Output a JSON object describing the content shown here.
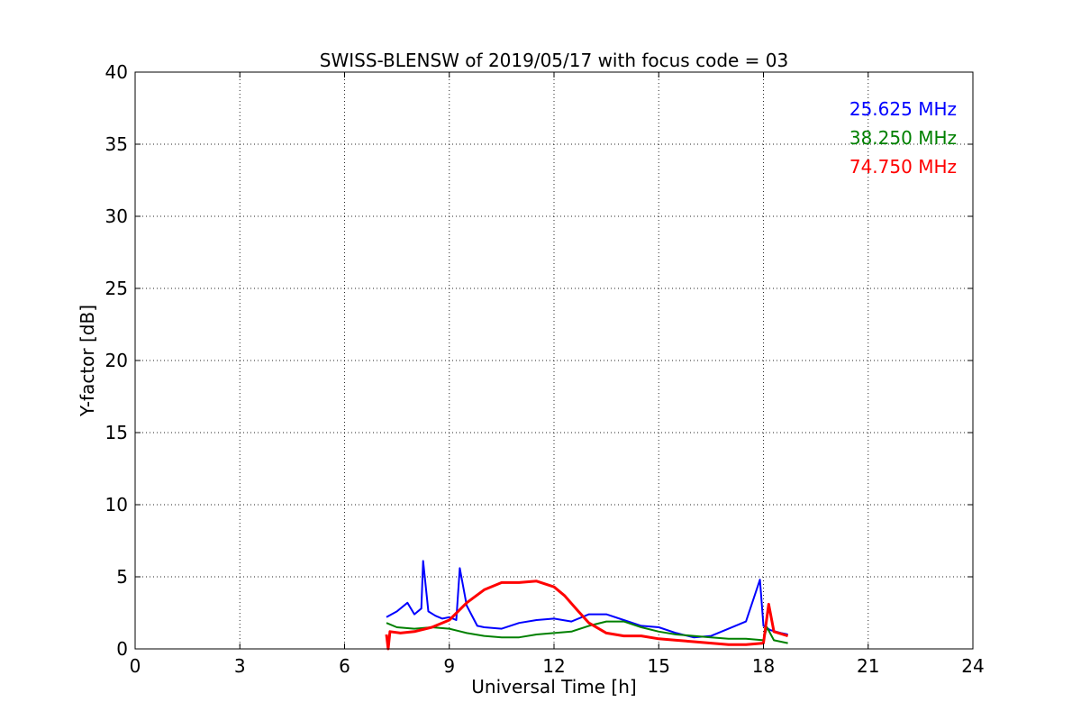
{
  "chart_data": {
    "type": "line",
    "title": "SWISS-BLENSW of 2019/05/17 with focus code = 03",
    "xlabel": "Universal Time [h]",
    "ylabel": "Y-factor [dB]",
    "xlim": [
      0,
      24
    ],
    "ylim": [
      0,
      40
    ],
    "xticks": [
      0,
      3,
      6,
      9,
      12,
      15,
      18,
      21,
      24
    ],
    "yticks": [
      0,
      5,
      10,
      15,
      20,
      25,
      30,
      35,
      40
    ],
    "grid": true,
    "legend_placement": "top-right",
    "series": [
      {
        "name": "25.625 MHz",
        "color": "#0000ff",
        "x": [
          7.2,
          7.5,
          7.8,
          8.0,
          8.2,
          8.25,
          8.4,
          8.6,
          8.8,
          9.0,
          9.2,
          9.3,
          9.5,
          9.8,
          10.0,
          10.5,
          11.0,
          11.5,
          12.0,
          12.5,
          13.0,
          13.5,
          14.0,
          14.5,
          15.0,
          15.5,
          16.0,
          16.5,
          17.0,
          17.5,
          17.9,
          18.0,
          18.2,
          18.5,
          18.7
        ],
        "y": [
          2.2,
          2.6,
          3.2,
          2.4,
          2.8,
          6.1,
          2.6,
          2.3,
          2.1,
          2.2,
          2.0,
          5.6,
          3.0,
          1.6,
          1.5,
          1.4,
          1.8,
          2.0,
          2.1,
          1.9,
          2.4,
          2.4,
          2.0,
          1.6,
          1.5,
          1.1,
          0.8,
          0.9,
          1.4,
          1.9,
          4.8,
          1.6,
          1.3,
          1.1,
          1.0
        ]
      },
      {
        "name": "38.250 MHz",
        "color": "#008000",
        "x": [
          7.2,
          7.5,
          8.0,
          8.5,
          9.0,
          9.5,
          10.0,
          10.5,
          11.0,
          11.5,
          12.0,
          12.5,
          13.0,
          13.5,
          14.0,
          14.5,
          15.0,
          15.5,
          16.0,
          16.5,
          17.0,
          17.5,
          18.0,
          18.1,
          18.3,
          18.7
        ],
        "y": [
          1.8,
          1.5,
          1.4,
          1.5,
          1.4,
          1.1,
          0.9,
          0.8,
          0.8,
          1.0,
          1.1,
          1.2,
          1.6,
          1.9,
          1.9,
          1.5,
          1.2,
          1.0,
          0.9,
          0.8,
          0.7,
          0.7,
          0.6,
          1.5,
          0.6,
          0.4
        ]
      },
      {
        "name": "74.750 MHz",
        "color": "#ff0000",
        "x": [
          7.2,
          7.25,
          7.3,
          7.6,
          8.0,
          8.5,
          9.0,
          9.5,
          10.0,
          10.5,
          11.0,
          11.5,
          12.0,
          12.3,
          12.7,
          13.0,
          13.5,
          14.0,
          14.5,
          15.0,
          15.5,
          16.0,
          16.5,
          17.0,
          17.5,
          18.0,
          18.15,
          18.3,
          18.7
        ],
        "y": [
          1.0,
          0.0,
          1.2,
          1.1,
          1.2,
          1.5,
          2.0,
          3.2,
          4.1,
          4.6,
          4.6,
          4.7,
          4.3,
          3.7,
          2.6,
          1.8,
          1.1,
          0.9,
          0.9,
          0.7,
          0.6,
          0.5,
          0.4,
          0.3,
          0.3,
          0.4,
          3.1,
          1.2,
          0.9
        ]
      }
    ]
  }
}
